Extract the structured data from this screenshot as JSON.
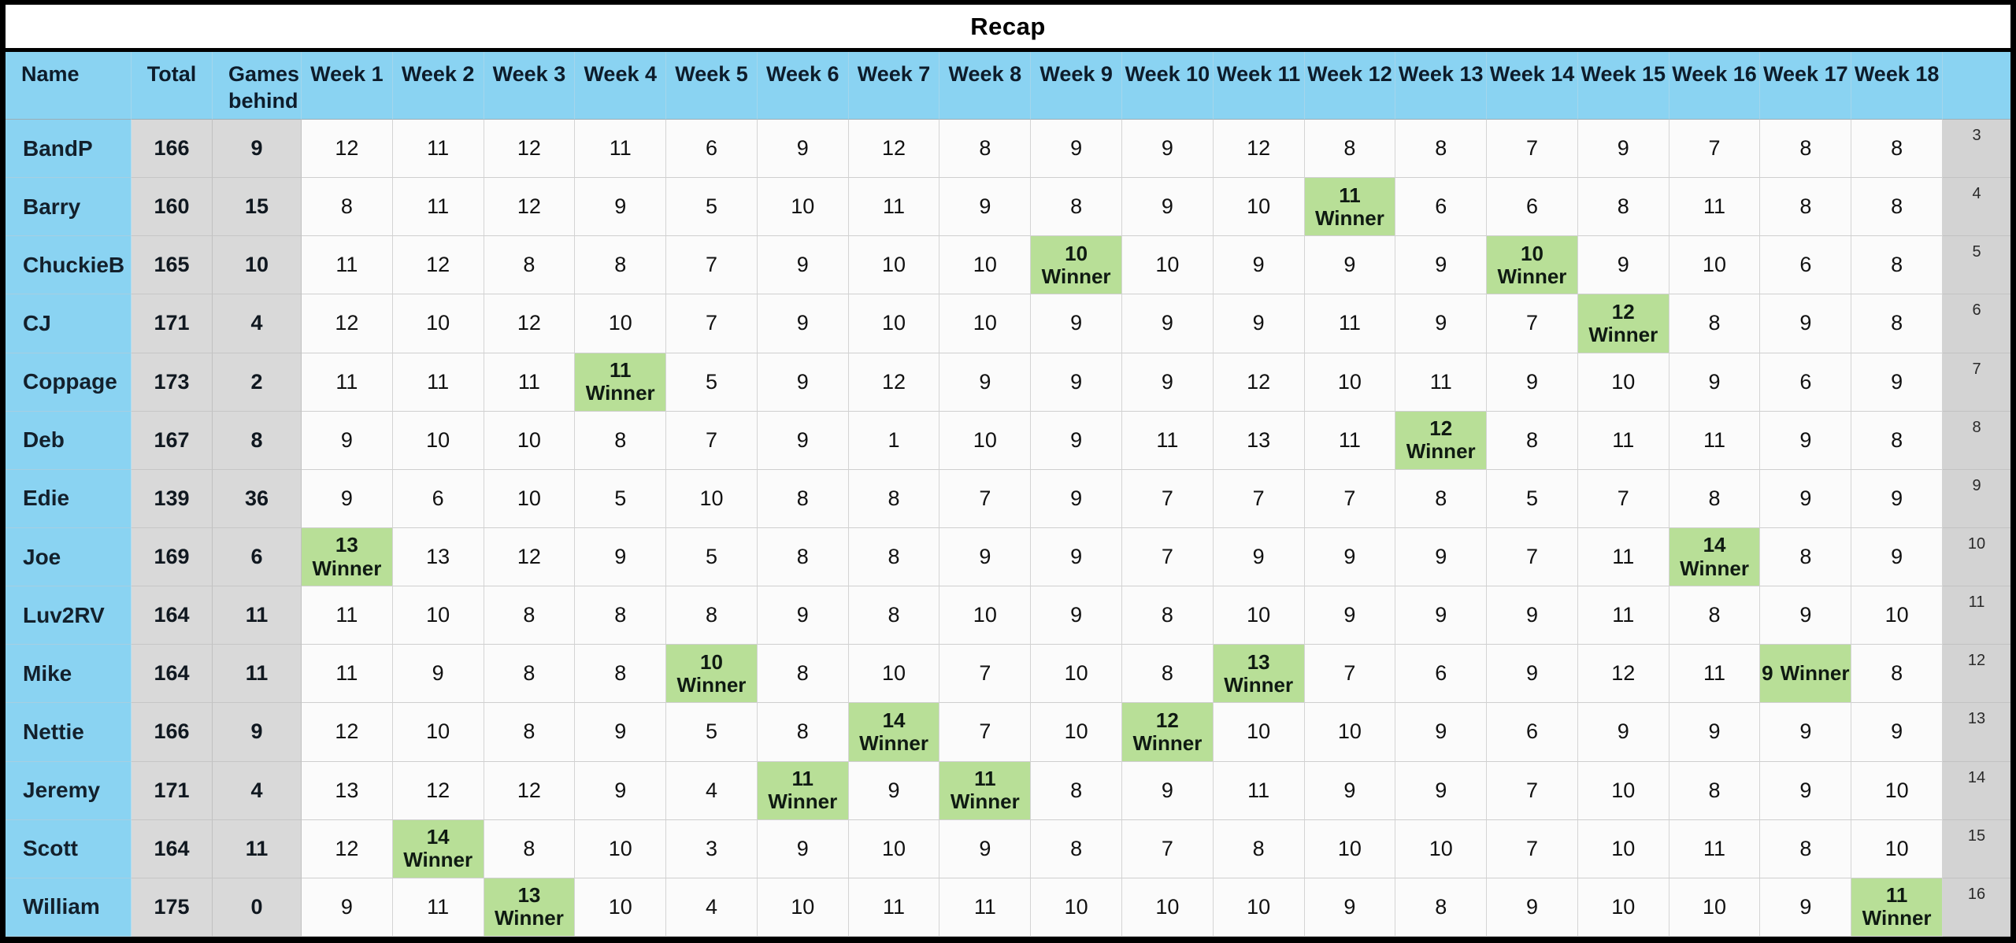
{
  "title": "Recap",
  "strings": {
    "winner_label": "Winner"
  },
  "colors": {
    "header_blue": "#8ad3f2",
    "column_gray": "#d9d9d9",
    "winner_green": "#b8df97",
    "row_number_gray": "#d3d3d3",
    "cell_white": "#fbfbfb",
    "outer_border": "#000000"
  },
  "header": {
    "name": "Name",
    "total": "Total",
    "games_behind": "Games behind",
    "weeks": [
      "Week 1",
      "Week 2",
      "Week 3",
      "Week 4",
      "Week 5",
      "Week 6",
      "Week 7",
      "Week 8",
      "Week 9",
      "Week 10",
      "Week 11",
      "Week 12",
      "Week 13",
      "Week 14",
      "Week 15",
      "Week 16",
      "Week 17",
      "Week 18"
    ]
  },
  "rows": [
    {
      "name": "BandP",
      "total": 166,
      "games_behind": 9,
      "row_num": 3,
      "scores": [
        {
          "v": 12
        },
        {
          "v": 11
        },
        {
          "v": 12
        },
        {
          "v": 11
        },
        {
          "v": 6
        },
        {
          "v": 9
        },
        {
          "v": 12
        },
        {
          "v": 8
        },
        {
          "v": 9
        },
        {
          "v": 9
        },
        {
          "v": 12
        },
        {
          "v": 8
        },
        {
          "v": 8
        },
        {
          "v": 7
        },
        {
          "v": 9
        },
        {
          "v": 7
        },
        {
          "v": 8
        },
        {
          "v": 8
        }
      ]
    },
    {
      "name": "Barry",
      "total": 160,
      "games_behind": 15,
      "row_num": 4,
      "scores": [
        {
          "v": 8
        },
        {
          "v": 11
        },
        {
          "v": 12
        },
        {
          "v": 9
        },
        {
          "v": 5
        },
        {
          "v": 10
        },
        {
          "v": 11
        },
        {
          "v": 9
        },
        {
          "v": 8
        },
        {
          "v": 9
        },
        {
          "v": 10
        },
        {
          "v": 11,
          "winner": true
        },
        {
          "v": 6
        },
        {
          "v": 6
        },
        {
          "v": 8
        },
        {
          "v": 11
        },
        {
          "v": 8
        },
        {
          "v": 8
        }
      ]
    },
    {
      "name": "ChuckieB",
      "total": 165,
      "games_behind": 10,
      "row_num": 5,
      "scores": [
        {
          "v": 11
        },
        {
          "v": 12
        },
        {
          "v": 8
        },
        {
          "v": 8
        },
        {
          "v": 7
        },
        {
          "v": 9
        },
        {
          "v": 10
        },
        {
          "v": 10
        },
        {
          "v": 10,
          "winner": true
        },
        {
          "v": 10
        },
        {
          "v": 9
        },
        {
          "v": 9
        },
        {
          "v": 9
        },
        {
          "v": 10,
          "winner": true
        },
        {
          "v": 9
        },
        {
          "v": 10
        },
        {
          "v": 6
        },
        {
          "v": 8
        }
      ]
    },
    {
      "name": "CJ",
      "total": 171,
      "games_behind": 4,
      "row_num": 6,
      "scores": [
        {
          "v": 12
        },
        {
          "v": 10
        },
        {
          "v": 12
        },
        {
          "v": 10
        },
        {
          "v": 7
        },
        {
          "v": 9
        },
        {
          "v": 10
        },
        {
          "v": 10
        },
        {
          "v": 9
        },
        {
          "v": 9
        },
        {
          "v": 9
        },
        {
          "v": 11
        },
        {
          "v": 9
        },
        {
          "v": 7
        },
        {
          "v": 12,
          "winner": true
        },
        {
          "v": 8
        },
        {
          "v": 9
        },
        {
          "v": 8
        }
      ]
    },
    {
      "name": "Coppage",
      "total": 173,
      "games_behind": 2,
      "row_num": 7,
      "scores": [
        {
          "v": 11
        },
        {
          "v": 11
        },
        {
          "v": 11
        },
        {
          "v": 11,
          "winner": true
        },
        {
          "v": 5
        },
        {
          "v": 9
        },
        {
          "v": 12
        },
        {
          "v": 9
        },
        {
          "v": 9
        },
        {
          "v": 9
        },
        {
          "v": 12
        },
        {
          "v": 10
        },
        {
          "v": 11
        },
        {
          "v": 9
        },
        {
          "v": 10
        },
        {
          "v": 9
        },
        {
          "v": 6
        },
        {
          "v": 9
        }
      ]
    },
    {
      "name": "Deb",
      "total": 167,
      "games_behind": 8,
      "row_num": 8,
      "scores": [
        {
          "v": 9
        },
        {
          "v": 10
        },
        {
          "v": 10
        },
        {
          "v": 8
        },
        {
          "v": 7
        },
        {
          "v": 9
        },
        {
          "v": 1
        },
        {
          "v": 10
        },
        {
          "v": 9
        },
        {
          "v": 11
        },
        {
          "v": 13
        },
        {
          "v": 11
        },
        {
          "v": 12,
          "winner": true
        },
        {
          "v": 8
        },
        {
          "v": 11
        },
        {
          "v": 11
        },
        {
          "v": 9
        },
        {
          "v": 8
        }
      ]
    },
    {
      "name": "Edie",
      "total": 139,
      "games_behind": 36,
      "row_num": 9,
      "scores": [
        {
          "v": 9
        },
        {
          "v": 6
        },
        {
          "v": 10
        },
        {
          "v": 5
        },
        {
          "v": 10
        },
        {
          "v": 8
        },
        {
          "v": 8
        },
        {
          "v": 7
        },
        {
          "v": 9
        },
        {
          "v": 7
        },
        {
          "v": 7
        },
        {
          "v": 7
        },
        {
          "v": 8
        },
        {
          "v": 5
        },
        {
          "v": 7
        },
        {
          "v": 8
        },
        {
          "v": 9
        },
        {
          "v": 9
        }
      ]
    },
    {
      "name": "Joe",
      "total": 169,
      "games_behind": 6,
      "row_num": 10,
      "scores": [
        {
          "v": 13,
          "winner": true
        },
        {
          "v": 13
        },
        {
          "v": 12
        },
        {
          "v": 9
        },
        {
          "v": 5
        },
        {
          "v": 8
        },
        {
          "v": 8
        },
        {
          "v": 9
        },
        {
          "v": 9
        },
        {
          "v": 7
        },
        {
          "v": 9
        },
        {
          "v": 9
        },
        {
          "v": 9
        },
        {
          "v": 7
        },
        {
          "v": 11
        },
        {
          "v": 14,
          "winner": true
        },
        {
          "v": 8
        },
        {
          "v": 9
        }
      ]
    },
    {
      "name": "Luv2RV",
      "total": 164,
      "games_behind": 11,
      "row_num": 11,
      "scores": [
        {
          "v": 11
        },
        {
          "v": 10
        },
        {
          "v": 8
        },
        {
          "v": 8
        },
        {
          "v": 8
        },
        {
          "v": 9
        },
        {
          "v": 8
        },
        {
          "v": 10
        },
        {
          "v": 9
        },
        {
          "v": 8
        },
        {
          "v": 10
        },
        {
          "v": 9
        },
        {
          "v": 9
        },
        {
          "v": 9
        },
        {
          "v": 11
        },
        {
          "v": 8
        },
        {
          "v": 9
        },
        {
          "v": 10
        }
      ]
    },
    {
      "name": "Mike",
      "total": 164,
      "games_behind": 11,
      "row_num": 12,
      "scores": [
        {
          "v": 11
        },
        {
          "v": 9
        },
        {
          "v": 8
        },
        {
          "v": 8
        },
        {
          "v": 10,
          "winner": true
        },
        {
          "v": 8
        },
        {
          "v": 10
        },
        {
          "v": 7
        },
        {
          "v": 10
        },
        {
          "v": 8
        },
        {
          "v": 13,
          "winner": true
        },
        {
          "v": 7
        },
        {
          "v": 6
        },
        {
          "v": 9
        },
        {
          "v": 12
        },
        {
          "v": 11
        },
        {
          "v": 9,
          "winner": true,
          "inline": true
        },
        {
          "v": 8
        }
      ]
    },
    {
      "name": "Nettie",
      "total": 166,
      "games_behind": 9,
      "row_num": 13,
      "scores": [
        {
          "v": 12
        },
        {
          "v": 10
        },
        {
          "v": 8
        },
        {
          "v": 9
        },
        {
          "v": 5
        },
        {
          "v": 8
        },
        {
          "v": 14,
          "winner": true
        },
        {
          "v": 7
        },
        {
          "v": 10
        },
        {
          "v": 12,
          "winner": true
        },
        {
          "v": 10
        },
        {
          "v": 10
        },
        {
          "v": 9
        },
        {
          "v": 6
        },
        {
          "v": 9
        },
        {
          "v": 9
        },
        {
          "v": 9
        },
        {
          "v": 9
        }
      ]
    },
    {
      "name": "Jeremy",
      "total": 171,
      "games_behind": 4,
      "row_num": 14,
      "scores": [
        {
          "v": 13
        },
        {
          "v": 12
        },
        {
          "v": 12
        },
        {
          "v": 9
        },
        {
          "v": 4
        },
        {
          "v": 11,
          "winner": true
        },
        {
          "v": 9
        },
        {
          "v": 11,
          "winner": true
        },
        {
          "v": 8
        },
        {
          "v": 9
        },
        {
          "v": 11
        },
        {
          "v": 9
        },
        {
          "v": 9
        },
        {
          "v": 7
        },
        {
          "v": 10
        },
        {
          "v": 8
        },
        {
          "v": 9
        },
        {
          "v": 10
        }
      ]
    },
    {
      "name": "Scott",
      "total": 164,
      "games_behind": 11,
      "row_num": 15,
      "scores": [
        {
          "v": 12
        },
        {
          "v": 14,
          "winner": true
        },
        {
          "v": 8
        },
        {
          "v": 10
        },
        {
          "v": 3
        },
        {
          "v": 9
        },
        {
          "v": 10
        },
        {
          "v": 9
        },
        {
          "v": 8
        },
        {
          "v": 7
        },
        {
          "v": 8
        },
        {
          "v": 10
        },
        {
          "v": 10
        },
        {
          "v": 7
        },
        {
          "v": 10
        },
        {
          "v": 11
        },
        {
          "v": 8
        },
        {
          "v": 10
        }
      ]
    },
    {
      "name": "William",
      "total": 175,
      "games_behind": 0,
      "row_num": 16,
      "scores": [
        {
          "v": 9
        },
        {
          "v": 11
        },
        {
          "v": 13,
          "winner": true
        },
        {
          "v": 10
        },
        {
          "v": 4
        },
        {
          "v": 10
        },
        {
          "v": 11
        },
        {
          "v": 11
        },
        {
          "v": 10
        },
        {
          "v": 10
        },
        {
          "v": 10
        },
        {
          "v": 9
        },
        {
          "v": 8
        },
        {
          "v": 9
        },
        {
          "v": 10
        },
        {
          "v": 10
        },
        {
          "v": 9
        },
        {
          "v": 11,
          "winner": true
        }
      ]
    }
  ]
}
